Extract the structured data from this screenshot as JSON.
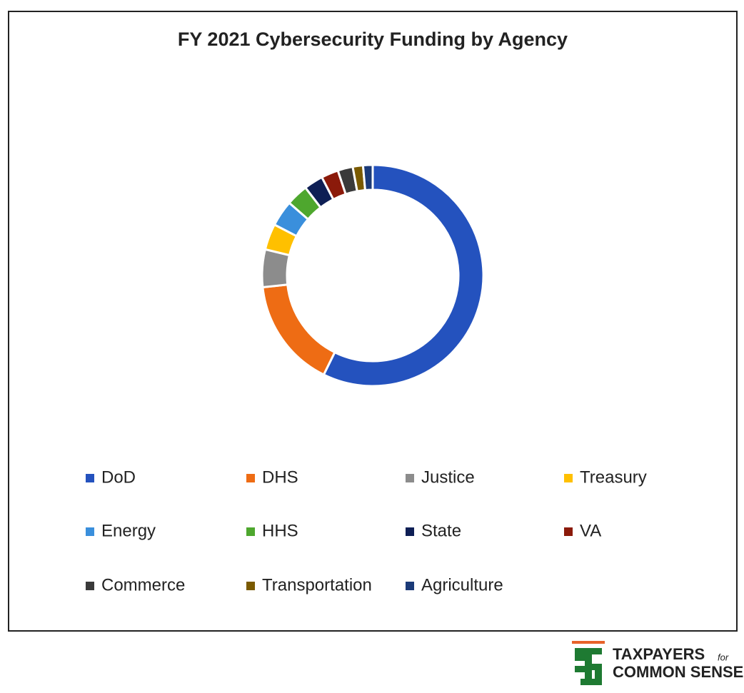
{
  "chart_data": {
    "type": "donut",
    "title": "FY 2021 Cybersecurity Funding by Agency",
    "categories": [
      "DoD",
      "DHS",
      "Justice",
      "Treasury",
      "Energy",
      "HHS",
      "State",
      "VA",
      "Commerce",
      "Transportation",
      "Agriculture"
    ],
    "values": [
      57.3,
      16,
      5.5,
      3.8,
      3.8,
      3.2,
      2.8,
      2.5,
      2.2,
      1.5,
      1.4
    ],
    "colors": [
      "#2452be",
      "#ee6c14",
      "#8c8c8c",
      "#ffc000",
      "#3a8fdc",
      "#4ea72e",
      "#0e1f55",
      "#8b1a0a",
      "#3a3a3a",
      "#7a5a00",
      "#1b3a78"
    ]
  },
  "logo": {
    "line1": "TAXPAYERS",
    "for": "for",
    "line2": "COMMON SENSE"
  }
}
